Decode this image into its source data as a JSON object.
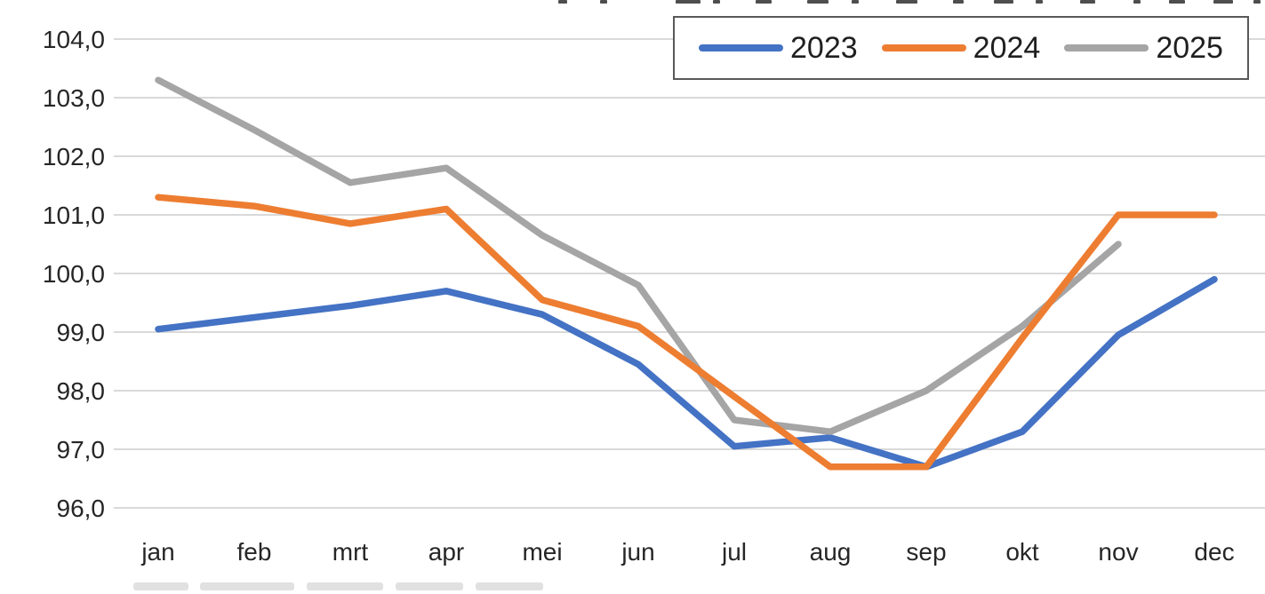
{
  "chart_data": {
    "type": "line",
    "categories": [
      "jan",
      "feb",
      "mrt",
      "apr",
      "mei",
      "jun",
      "jul",
      "aug",
      "sep",
      "okt",
      "nov",
      "dec"
    ],
    "series": [
      {
        "name": "2023",
        "color": "#4472C4",
        "values": [
          99.05,
          99.25,
          99.45,
          99.7,
          99.3,
          98.45,
          97.05,
          97.2,
          96.7,
          97.3,
          98.95,
          99.9
        ]
      },
      {
        "name": "2024",
        "color": "#ED7D31",
        "values": [
          101.3,
          101.15,
          100.85,
          101.1,
          99.55,
          99.1,
          97.9,
          96.7,
          96.7,
          98.9,
          101.0,
          101.0
        ]
      },
      {
        "name": "2025",
        "color": "#A5A5A5",
        "values": [
          103.3,
          102.45,
          101.55,
          101.8,
          100.65,
          99.8,
          97.5,
          97.3,
          98.0,
          99.1,
          100.5,
          null
        ]
      }
    ],
    "ylim": [
      96.0,
      104.0
    ],
    "ytick_step": 1.0,
    "ytick_labels": [
      "104,0",
      "103,0",
      "102,0",
      "101,0",
      "100,0",
      "99,0",
      "98,0",
      "97,0",
      "96,0"
    ],
    "decimal_separator": ",",
    "grid": "horizontal",
    "legend_position": "top-right",
    "xlabel": "",
    "ylabel": ""
  },
  "colors": {
    "gridline": "#D9D9D9",
    "axis_text": "#262626",
    "legend_border": "#595959"
  }
}
